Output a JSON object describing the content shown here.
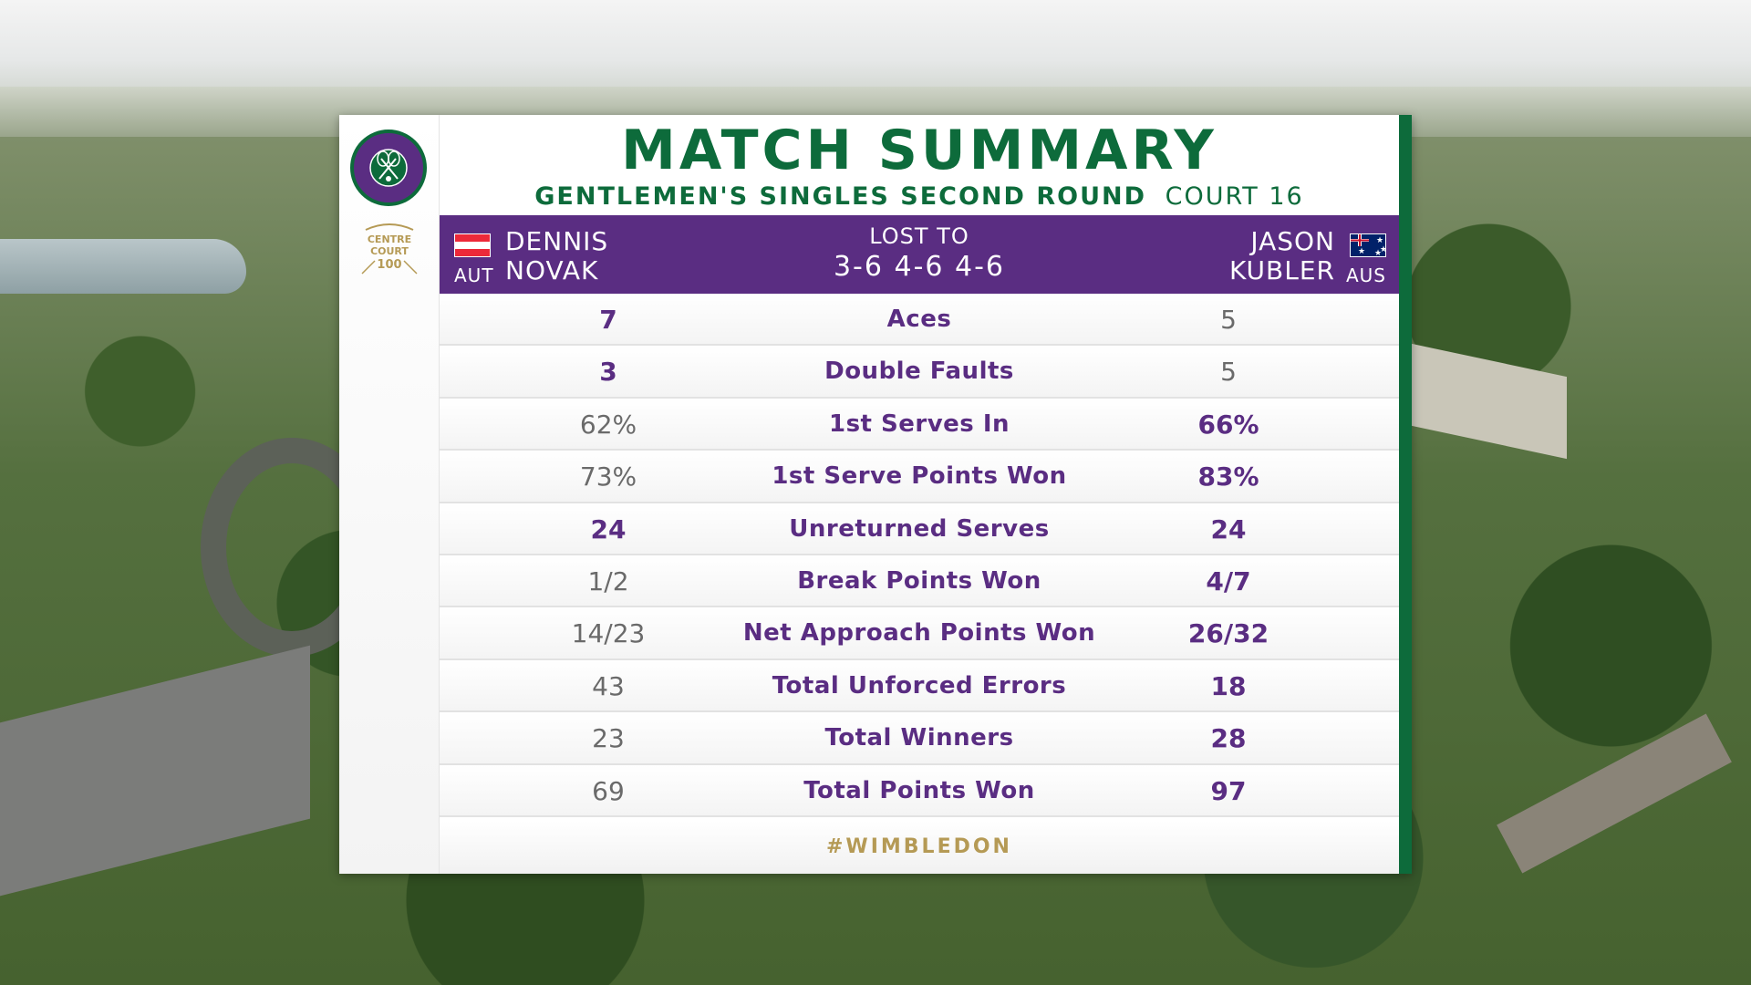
{
  "title": "MATCH SUMMARY",
  "subtitle": {
    "round": "GENTLEMEN'S SINGLES SECOND ROUND",
    "court": "COURT 16"
  },
  "logos": {
    "wimbledon": "THE CHAMPIONSHIPS WIMBLEDON",
    "centre_court": "CENTRE COURT 100"
  },
  "player_left": {
    "first_name": "DENNIS",
    "last_name": "NOVAK",
    "country": "AUT",
    "flag_icon": "austria-flag-icon"
  },
  "result": {
    "label": "LOST TO",
    "score": "3-6 4-6 4-6"
  },
  "player_right": {
    "first_name": "JASON",
    "last_name": "KUBLER",
    "country": "AUS",
    "flag_icon": "australia-flag-icon"
  },
  "stats": [
    {
      "label": "Aces",
      "left": "7",
      "right": "5",
      "leader": "left"
    },
    {
      "label": "Double Faults",
      "left": "3",
      "right": "5",
      "leader": "left"
    },
    {
      "label": "1st Serves In",
      "left": "62%",
      "right": "66%",
      "leader": "right"
    },
    {
      "label": "1st Serve Points Won",
      "left": "73%",
      "right": "83%",
      "leader": "right"
    },
    {
      "label": "Unreturned Serves",
      "left": "24",
      "right": "24",
      "leader": "both"
    },
    {
      "label": "Break Points Won",
      "left": "1/2",
      "right": "4/7",
      "leader": "right"
    },
    {
      "label": "Net Approach Points Won",
      "left": "14/23",
      "right": "26/32",
      "leader": "right"
    },
    {
      "label": "Total Unforced Errors",
      "left": "43",
      "right": "18",
      "leader": "right"
    },
    {
      "label": "Total Winners",
      "left": "23",
      "right": "28",
      "leader": "right"
    },
    {
      "label": "Total Points Won",
      "left": "69",
      "right": "97",
      "leader": "right"
    }
  ],
  "footer": "#WIMBLEDON",
  "colors": {
    "purple": "#5a2d82",
    "green": "#0d6b3b",
    "gold": "#b59a55",
    "grey_text": "#6a6a6a"
  }
}
